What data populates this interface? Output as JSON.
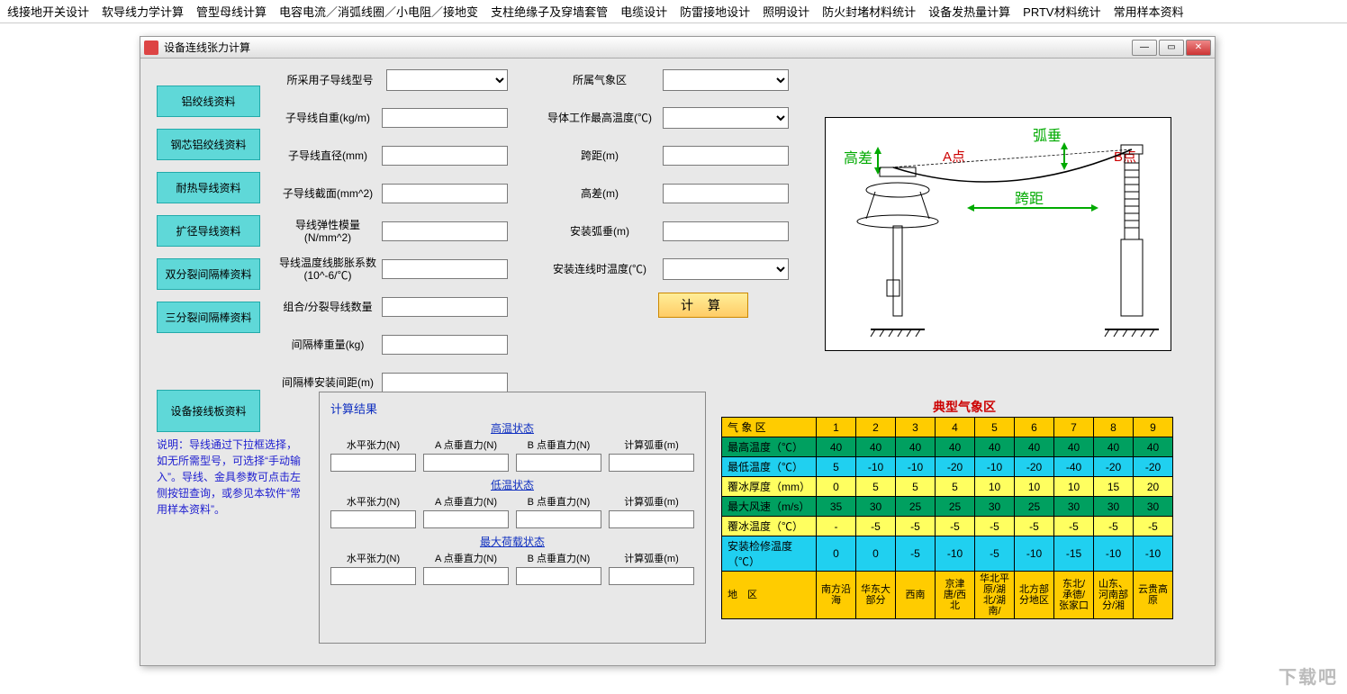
{
  "menubar": [
    "线接地开关设计",
    "软导线力学计算",
    "管型母线计算",
    "电容电流／消弧线圈／小电阻／接地变",
    "支柱绝缘子及穿墙套管",
    "电缆设计",
    "防雷接地设计",
    "照明设计",
    "防火封堵材料统计",
    "设备发热量计算",
    "PRTV材料统计",
    "常用样本资料"
  ],
  "window_title": "设备连线张力计算",
  "side_buttons": [
    "铝绞线资料",
    "钢芯铝绞线资料",
    "耐热导线资料",
    "扩径导线资料",
    "双分裂间隔棒资料",
    "三分裂间隔棒资料"
  ],
  "side_button_big": "设备接线板资料",
  "col1_labels": [
    "所采用子导线型号",
    "子导线自重(kg/m)",
    "子导线直径(mm)",
    "子导线截面(mm^2)",
    "导线弹性模量(N/mm^2)",
    "导线温度线膨胀系数(10^-6/℃)",
    "组合/分裂导线数量",
    "间隔棒重量(kg)",
    "间隔棒安装间距(m)"
  ],
  "col2_labels": [
    "所属气象区",
    "导体工作最高温度(℃)",
    "跨距(m)",
    "高差(m)",
    "安装弧垂(m)",
    "安装连线时温度(℃)"
  ],
  "calc_btn": "计 算",
  "help": "说明：导线通过下拉框选择，如无所需型号，可选择“手动输入”。导线、金具参数可点击左侧按钮查询，或参见本软件“常用样本资料”。",
  "results": {
    "title": "计算结果",
    "states": [
      "高温状态",
      "低温状态",
      "最大荷载状态"
    ],
    "cols": [
      "水平张力(N)",
      "A 点垂直力(N)",
      "B 点垂直力(N)",
      "计算弧垂(m)"
    ]
  },
  "diagram_labels": {
    "gaocha": "高差",
    "huchui": "弧垂",
    "kuaju": "跨距",
    "a": "A点",
    "b": "B点"
  },
  "weather": {
    "title": "典型气象区",
    "header": [
      "气 象 区",
      "1",
      "2",
      "3",
      "4",
      "5",
      "6",
      "7",
      "8",
      "9"
    ],
    "rows": [
      {
        "cls": "row-green",
        "label": "最高温度（℃）",
        "vals": [
          "40",
          "40",
          "40",
          "40",
          "40",
          "40",
          "40",
          "40",
          "40"
        ]
      },
      {
        "cls": "row-cyan",
        "label": "最低温度（℃）",
        "vals": [
          "5",
          "-10",
          "-10",
          "-20",
          "-10",
          "-20",
          "-40",
          "-20",
          "-20"
        ]
      },
      {
        "cls": "row-yellow",
        "label": "覆冰厚度（mm）",
        "vals": [
          "0",
          "5",
          "5",
          "5",
          "10",
          "10",
          "10",
          "15",
          "20"
        ]
      },
      {
        "cls": "row-green",
        "label": "最大风速（m/s）",
        "vals": [
          "35",
          "30",
          "25",
          "25",
          "30",
          "25",
          "30",
          "30",
          "30"
        ]
      },
      {
        "cls": "row-yellow",
        "label": "覆冰温度（℃）",
        "vals": [
          "-",
          "-5",
          "-5",
          "-5",
          "-5",
          "-5",
          "-5",
          "-5",
          "-5"
        ]
      },
      {
        "cls": "row-cyan",
        "label": "安装检修温度（℃）",
        "vals": [
          "0",
          "0",
          "-5",
          "-10",
          "-5",
          "-10",
          "-15",
          "-10",
          "-10"
        ]
      },
      {
        "cls": "row-region",
        "label": "地　区",
        "vals": [
          "南方沿海",
          "华东大部分",
          "西南",
          "京津唐/西北",
          "华北平原/湖北/湖南/",
          "北方部分地区",
          "东北/承德/张家口",
          "山东、河南部分/湘",
          "云贵高原"
        ]
      }
    ]
  },
  "watermark": "下载吧"
}
